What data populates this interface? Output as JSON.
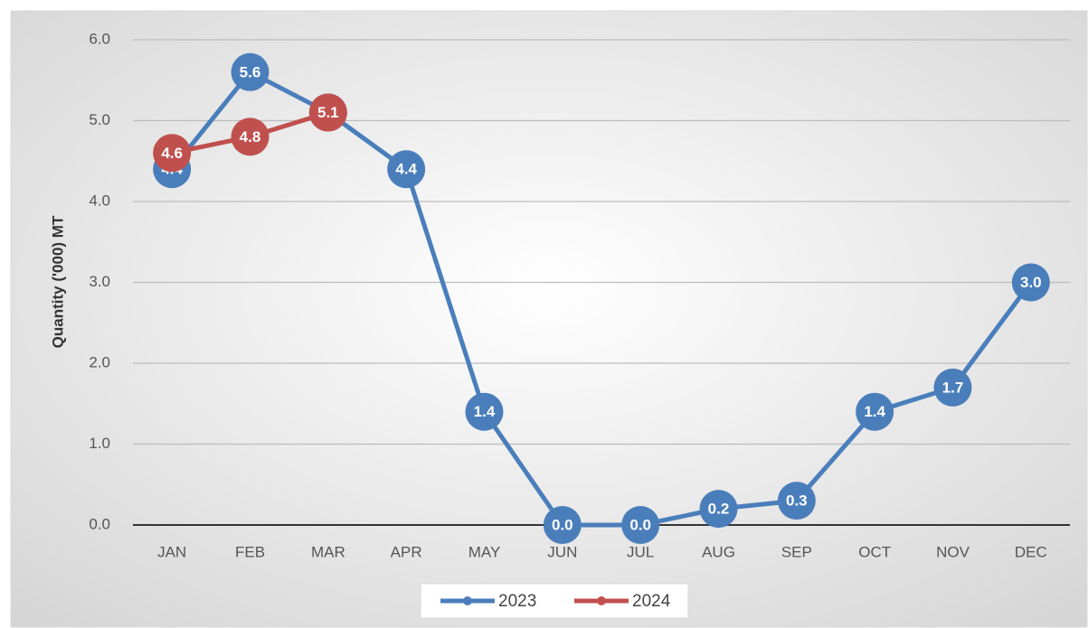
{
  "chart_data": {
    "type": "line",
    "y_label": "Quantity  ('000) MT",
    "categories": [
      "JAN",
      "FEB",
      "MAR",
      "APR",
      "MAY",
      "JUN",
      "JUL",
      "AUG",
      "SEP",
      "OCT",
      "NOV",
      "DEC"
    ],
    "series": [
      {
        "name": "2023",
        "color": "#4a7ebb",
        "values": [
          4.4,
          5.6,
          5.1,
          4.4,
          1.4,
          0,
          0,
          0.2,
          0.3,
          1.4,
          1.7,
          3
        ],
        "value_labels": [
          "4.4",
          "5.6",
          "5.1",
          "4.4",
          "1.4",
          "0.0",
          "0.0",
          "0.2",
          "0.3",
          "1.4",
          "1.7",
          "3.0"
        ]
      },
      {
        "name": "2024",
        "color": "#c0504d",
        "values": [
          4.6,
          4.8,
          5.1,
          null,
          null,
          null,
          null,
          null,
          null,
          null,
          null,
          null
        ],
        "value_labels": [
          "4.6",
          "4.8",
          "5.1",
          null,
          null,
          null,
          null,
          null,
          null,
          null,
          null,
          null
        ]
      }
    ],
    "ylim": [
      0,
      6
    ],
    "yticks": [
      {
        "value": 0,
        "label": "0.0"
      },
      {
        "value": 1,
        "label": "1.0"
      },
      {
        "value": 2,
        "label": "2.0"
      },
      {
        "value": 3,
        "label": "3.0"
      },
      {
        "value": 4,
        "label": "4.0"
      },
      {
        "value": 5,
        "label": "5.0"
      },
      {
        "value": 6,
        "label": "6.0"
      }
    ],
    "grid": true,
    "legend": "bottom"
  }
}
